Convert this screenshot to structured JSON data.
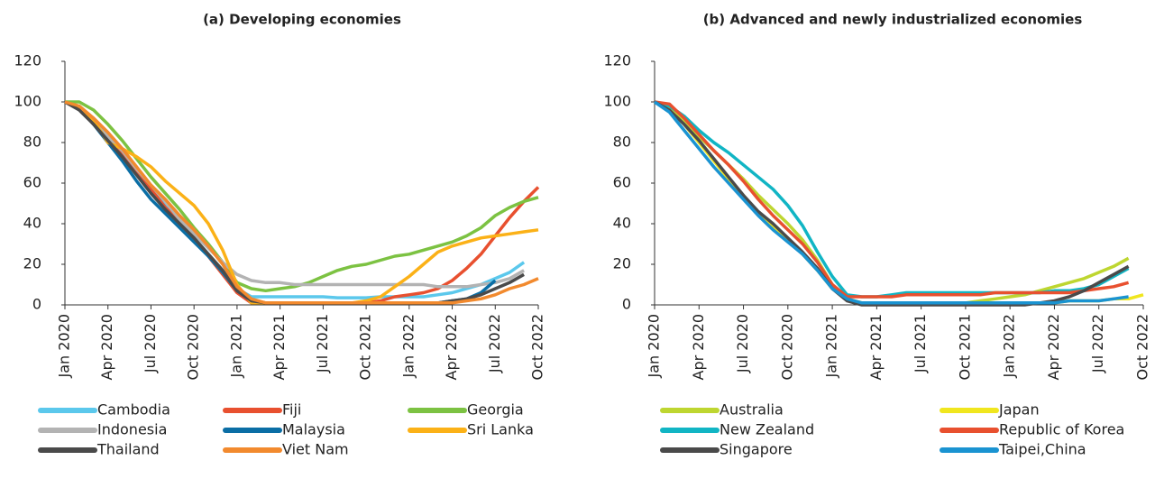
{
  "chart_data": [
    {
      "type": "line",
      "title": "(a) Developing economies",
      "categories": [
        "Jan 2020",
        null,
        null,
        "Apr 2020",
        null,
        null,
        "Jul 2020",
        null,
        null,
        "Oct 2020",
        null,
        null,
        "Jan 2021",
        null,
        null,
        "Apr 2021",
        null,
        null,
        "Jul 2021",
        null,
        null,
        "Oct 2021",
        null,
        null,
        "Jan 2022",
        null,
        null,
        "Apr 2022",
        null,
        null,
        "Jul 2022",
        null,
        null,
        "Oct 2022"
      ],
      "ylim": [
        0,
        120
      ],
      "yticks": [
        0,
        20,
        40,
        60,
        80,
        100,
        120
      ],
      "series": [
        {
          "name": "Cambodia",
          "color": "#5bc8ec",
          "values": [
            100,
            97,
            90,
            83,
            75,
            66,
            57,
            49,
            41,
            33,
            25,
            17,
            8,
            4,
            4,
            4,
            4,
            4,
            4,
            3.5,
            3.5,
            3.5,
            4,
            4,
            4,
            4,
            5,
            6,
            8,
            10,
            13,
            16,
            21,
            null
          ]
        },
        {
          "name": "Fiji",
          "color": "#e8502f",
          "values": [
            100,
            97,
            89,
            82,
            74,
            66,
            57,
            48,
            41,
            33,
            24,
            15,
            6,
            1,
            1,
            1,
            1,
            1,
            1,
            1,
            1,
            1,
            2,
            4,
            5,
            6,
            8,
            12,
            18,
            25,
            34,
            43,
            51,
            58
          ]
        },
        {
          "name": "Georgia",
          "color": "#7cc242",
          "values": [
            100,
            100,
            96,
            89,
            81,
            72,
            63,
            55,
            47,
            38,
            30,
            21,
            11,
            8,
            7,
            8,
            9,
            11,
            14,
            17,
            19,
            20,
            22,
            24,
            25,
            27,
            29,
            31,
            34,
            38,
            44,
            48,
            51,
            53
          ]
        },
        {
          "name": "Indonesia",
          "color": "#b3b3b3",
          "values": [
            100,
            97,
            90,
            83,
            76,
            67,
            59,
            51,
            42,
            35,
            28,
            21,
            15,
            12,
            11,
            11,
            10,
            10,
            10,
            10,
            10,
            10,
            10,
            10,
            10,
            10,
            9,
            9,
            9,
            10,
            11,
            13,
            17,
            null
          ]
        },
        {
          "name": "Malaysia",
          "color": "#0b6ea5",
          "values": [
            100,
            97,
            89,
            80,
            71,
            61,
            52,
            45,
            38,
            31,
            24,
            16,
            7,
            2,
            1,
            1,
            1,
            1,
            1,
            1,
            1,
            1,
            1,
            1,
            1,
            1,
            1,
            2,
            3,
            6,
            12,
            null,
            null,
            null
          ]
        },
        {
          "name": "Sri Lanka",
          "color": "#fbb117",
          "values": [
            100,
            97,
            91,
            80,
            77,
            73,
            68,
            61,
            55,
            49,
            40,
            27,
            10,
            1,
            1,
            1,
            1,
            1,
            1,
            1,
            1,
            2,
            4,
            9,
            14,
            20,
            26,
            29,
            31,
            33,
            34,
            35,
            36,
            37
          ]
        },
        {
          "name": "Thailand",
          "color": "#4a4a4a",
          "values": [
            100,
            96,
            89,
            81,
            73,
            64,
            55,
            47,
            40,
            33,
            25,
            17,
            7,
            2,
            1,
            1,
            1,
            1,
            1,
            1,
            1,
            1,
            1,
            1,
            1,
            1,
            1,
            2,
            3,
            5,
            8,
            11,
            15,
            null
          ]
        },
        {
          "name": "Viet Nam",
          "color": "#f28a2e",
          "values": [
            100,
            98,
            92,
            85,
            77,
            68,
            59,
            52,
            44,
            37,
            29,
            20,
            9,
            3,
            1,
            1,
            1,
            1,
            1,
            1,
            1,
            1,
            1,
            1,
            1,
            1,
            1,
            1,
            2,
            3,
            5,
            8,
            10,
            13
          ]
        }
      ]
    },
    {
      "type": "line",
      "title": "(b) Advanced and newly industrialized economies",
      "categories": [
        "Jan 2020",
        null,
        null,
        "Apr 2020",
        null,
        null,
        "Jul 2020",
        null,
        null,
        "Oct 2020",
        null,
        null,
        "Jan 2021",
        null,
        null,
        "Apr 2021",
        null,
        null,
        "Jul 2021",
        null,
        null,
        "Oct 2021",
        null,
        null,
        "Jan 2022",
        null,
        null,
        "Apr 2022",
        null,
        null,
        "Jul 2022",
        null,
        null,
        "Oct 2022"
      ],
      "ylim": [
        0,
        120
      ],
      "yticks": [
        0,
        20,
        40,
        60,
        80,
        100,
        120
      ],
      "series": [
        {
          "name": "Australia",
          "color": "#bed630",
          "values": [
            100,
            97,
            91,
            83,
            76,
            69,
            62,
            54,
            47,
            40,
            32,
            22,
            10,
            3,
            1,
            1,
            1,
            1,
            1,
            1,
            1,
            1,
            2,
            3,
            4,
            5,
            7,
            9,
            11,
            13,
            16,
            19,
            23,
            null
          ]
        },
        {
          "name": "Japan",
          "color": "#f0e61e",
          "values": [
            100,
            96,
            89,
            80,
            71,
            62,
            54,
            45,
            39,
            32,
            25,
            17,
            8,
            3,
            1,
            1,
            1,
            1,
            1,
            1,
            1,
            1,
            1,
            1,
            1,
            1,
            1,
            1,
            2,
            2,
            2,
            3,
            3,
            5
          ]
        },
        {
          "name": "New Zealand",
          "color": "#11b5c4",
          "values": [
            100,
            98,
            93,
            86,
            80,
            75,
            69,
            63,
            57,
            49,
            39,
            26,
            14,
            5,
            4,
            4,
            5,
            6,
            6,
            6,
            6,
            6,
            6,
            6,
            6,
            6,
            6,
            7,
            7,
            8,
            10,
            14,
            18,
            null
          ]
        },
        {
          "name": "Republic of Korea",
          "color": "#e8502f",
          "values": [
            100,
            99,
            92,
            84,
            76,
            69,
            61,
            52,
            44,
            37,
            30,
            21,
            10,
            4,
            4,
            4,
            4,
            5,
            5,
            5,
            5,
            5,
            5,
            6,
            6,
            6,
            6,
            6,
            6,
            7,
            8,
            9,
            11,
            null
          ]
        },
        {
          "name": "Singapore",
          "color": "#4a4a4a",
          "values": [
            100,
            96,
            89,
            81,
            72,
            63,
            54,
            46,
            40,
            33,
            26,
            18,
            8,
            2,
            0,
            0,
            0,
            0,
            0,
            0,
            0,
            0,
            0,
            0,
            0,
            0,
            1,
            2,
            4,
            7,
            11,
            15,
            19,
            null
          ]
        },
        {
          "name": "Taipei,China",
          "color": "#1a93d1",
          "values": [
            100,
            95,
            86,
            77,
            68,
            60,
            52,
            44,
            37,
            31,
            25,
            17,
            8,
            3,
            1,
            1,
            1,
            1,
            1,
            1,
            1,
            1,
            1,
            1,
            1,
            1,
            1,
            1,
            2,
            2,
            2,
            3,
            4,
            null
          ]
        }
      ]
    }
  ]
}
